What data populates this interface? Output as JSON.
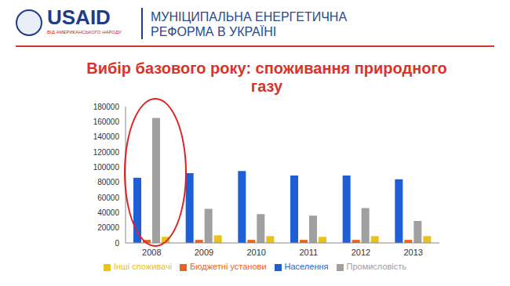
{
  "header": {
    "logo": "USAID",
    "logo_subtitle": "ВІД АМЕРИКАНСЬКОГО НАРОДУ",
    "text": [
      "МУНІЦИПАЛЬНА ЕНЕРГЕТИЧНА",
      "РЕФОРМА В УКРАЇНІ"
    ]
  },
  "chart_data": {
    "type": "bar",
    "title": "Вибір базового року: споживання природного газу",
    "categories": [
      "2008",
      "2009",
      "2010",
      "2011",
      "2012",
      "2013"
    ],
    "series": [
      {
        "name": "Населення",
        "color": "#1f5fd6",
        "values": [
          86000,
          92000,
          95000,
          89000,
          89000,
          84000
        ]
      },
      {
        "name": "Бюджетні установи",
        "color": "#e8641e",
        "values": [
          4000,
          4000,
          4000,
          4000,
          4000,
          4000
        ]
      },
      {
        "name": "Промисловість",
        "color": "#a0a0a0",
        "values": [
          165000,
          45000,
          38000,
          36000,
          46000,
          29000
        ]
      },
      {
        "name": "Іншi споживачі",
        "color": "#e8c21e",
        "values": [
          8000,
          10000,
          9000,
          8000,
          9000,
          9000
        ]
      }
    ],
    "ylim": [
      0,
      180000
    ],
    "yticks": [
      0,
      20000,
      40000,
      60000,
      80000,
      100000,
      120000,
      140000,
      160000,
      180000
    ],
    "grid": false,
    "legend": "bottom"
  }
}
